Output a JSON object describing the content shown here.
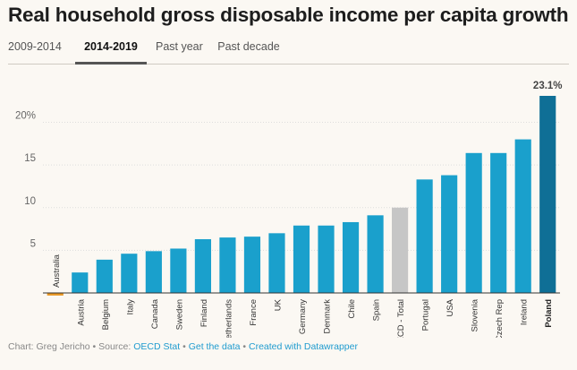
{
  "title": "Real household gross disposable income per capita growth",
  "tabs": [
    {
      "label": "2009-2014",
      "active": false
    },
    {
      "label": "2014-2019",
      "active": true
    },
    {
      "label": "Past year",
      "active": false
    },
    {
      "label": "Past decade",
      "active": false
    }
  ],
  "footer": {
    "prefix": "Chart: Greg Jericho • Source: ",
    "source_link": "OECD Stat",
    "sep1": " • ",
    "data_link": "Get the data",
    "sep2": " • ",
    "credit_link": "Created with Datawrapper"
  },
  "colors": {
    "bar": "#1aa0cc",
    "negative": "#e8951e",
    "oecd": "#c6c6c6",
    "highlight": "#0f6f96",
    "axis_text": "#666666",
    "grid": "#dddddd"
  },
  "chart_data": {
    "type": "bar",
    "categories": [
      "Australia",
      "Austria",
      "Belgium",
      "Italy",
      "Canada",
      "Sweden",
      "Finland",
      "Netherlands",
      "France",
      "UK",
      "Germany",
      "Denmark",
      "Chile",
      "Spain",
      "OECD - Total",
      "Portugal",
      "USA",
      "Slovenia",
      "Czech Rep",
      "Ireland",
      "Poland"
    ],
    "values": [
      -0.3,
      2.4,
      3.9,
      4.6,
      4.9,
      5.2,
      6.3,
      6.5,
      6.6,
      7.0,
      7.9,
      7.9,
      8.3,
      9.1,
      10.0,
      13.3,
      13.8,
      16.4,
      16.4,
      18.0,
      23.1
    ],
    "yticks": [
      5,
      10,
      15,
      20
    ],
    "ytick_labels": [
      "5",
      "10",
      "15",
      "20%"
    ],
    "ylim": [
      -0.6,
      23.5
    ],
    "highlight": {
      "category": "Poland",
      "label": "23.1%"
    },
    "special": {
      "category": "OECD - Total"
    },
    "grid": true
  }
}
